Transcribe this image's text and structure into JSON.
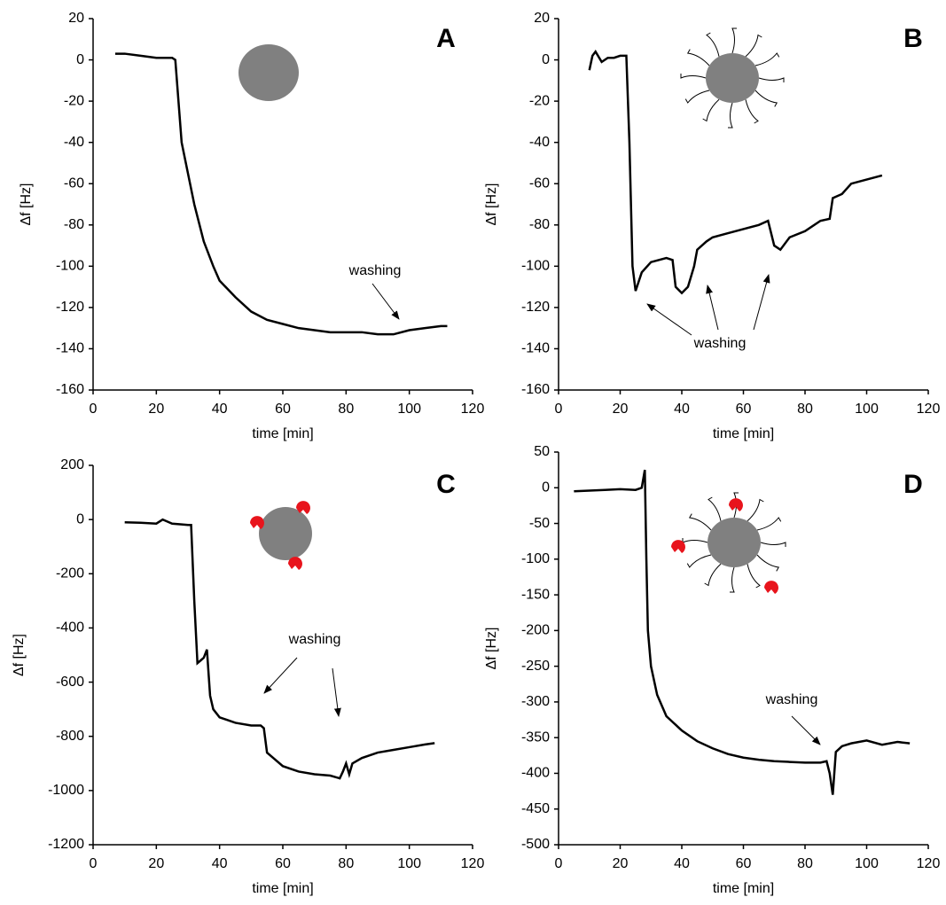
{
  "chart_data": [
    {
      "type": "line",
      "label": "A",
      "xlabel": "time [min]",
      "ylabel": "Δf [Hz]",
      "annotation": "washing",
      "xlim": [
        0,
        120
      ],
      "xticks": [
        0,
        20,
        40,
        60,
        80,
        100,
        120
      ],
      "ylim": [
        -160,
        20
      ],
      "yticks": [
        -160,
        -140,
        -120,
        -100,
        -80,
        -60,
        -40,
        -20,
        0,
        20
      ],
      "series": [
        {
          "color": "#000000",
          "x": [
            7,
            10,
            15,
            20,
            25,
            26,
            27,
            28,
            30,
            32,
            35,
            38,
            40,
            45,
            50,
            55,
            60,
            65,
            70,
            75,
            80,
            85,
            90,
            95,
            100,
            105,
            110,
            112
          ],
          "values": [
            3,
            3,
            2,
            1,
            1,
            0,
            -20,
            -40,
            -55,
            -70,
            -88,
            -100,
            -107,
            -115,
            -122,
            -126,
            -128,
            -130,
            -131,
            -132,
            -132,
            -132,
            -133,
            -133,
            -131,
            -130,
            -129,
            -129
          ]
        }
      ]
    },
    {
      "type": "line",
      "label": "B",
      "xlabel": "time [min]",
      "ylabel": "Δf [Hz]",
      "annotation": "washing",
      "xlim": [
        0,
        120
      ],
      "xticks": [
        0,
        20,
        40,
        60,
        80,
        100,
        120
      ],
      "ylim": [
        -160,
        20
      ],
      "yticks": [
        -160,
        -140,
        -120,
        -100,
        -80,
        -60,
        -40,
        -20,
        0,
        20
      ],
      "series": [
        {
          "color": "#000000",
          "x": [
            10,
            11,
            12,
            14,
            16,
            18,
            20,
            22,
            23,
            24,
            25,
            27,
            30,
            35,
            37,
            38,
            40,
            42,
            44,
            45,
            48,
            50,
            55,
            60,
            65,
            68,
            70,
            72,
            75,
            80,
            85,
            88,
            89,
            92,
            95,
            100,
            105
          ],
          "values": [
            -5,
            2,
            4,
            -1,
            1,
            1,
            2,
            2,
            -40,
            -100,
            -112,
            -103,
            -98,
            -96,
            -97,
            -110,
            -113,
            -110,
            -100,
            -92,
            -88,
            -86,
            -84,
            -82,
            -80,
            -78,
            -90,
            -92,
            -86,
            -83,
            -78,
            -77,
            -67,
            -65,
            -60,
            -58,
            -56
          ]
        }
      ]
    },
    {
      "type": "line",
      "label": "C",
      "xlabel": "time [min]",
      "ylabel": "Δf [Hz]",
      "annotation": "washing",
      "xlim": [
        0,
        120
      ],
      "xticks": [
        0,
        20,
        40,
        60,
        80,
        100,
        120
      ],
      "ylim": [
        -1200,
        200
      ],
      "yticks": [
        -1200,
        -1000,
        -800,
        -600,
        -400,
        -200,
        0,
        200
      ],
      "series": [
        {
          "color": "#000000",
          "x": [
            10,
            15,
            20,
            22,
            25,
            28,
            30,
            31,
            32,
            33,
            34,
            35,
            36,
            37,
            38,
            40,
            45,
            50,
            53,
            54,
            55,
            57,
            60,
            65,
            70,
            75,
            78,
            79,
            80,
            81,
            82,
            85,
            90,
            95,
            100,
            105,
            108
          ],
          "values": [
            -10,
            -12,
            -15,
            0,
            -15,
            -18,
            -20,
            -20,
            -300,
            -530,
            -520,
            -510,
            -480,
            -650,
            -700,
            -730,
            -750,
            -760,
            -760,
            -770,
            -860,
            -880,
            -910,
            -930,
            -940,
            -945,
            -955,
            -930,
            -900,
            -940,
            -900,
            -880,
            -860,
            -850,
            -840,
            -830,
            -825
          ]
        }
      ]
    },
    {
      "type": "line",
      "label": "D",
      "xlabel": "time [min]",
      "ylabel": "Δf [Hz]",
      "annotation": "washing",
      "xlim": [
        0,
        120
      ],
      "xticks": [
        0,
        20,
        40,
        60,
        80,
        100,
        120
      ],
      "ylim": [
        -500,
        50
      ],
      "yticks": [
        -500,
        -450,
        -400,
        -350,
        -300,
        -250,
        -200,
        -150,
        -100,
        -50,
        0,
        50
      ],
      "series": [
        {
          "color": "#000000",
          "x": [
            5,
            10,
            15,
            20,
            25,
            27,
            28,
            28.5,
            29,
            30,
            32,
            35,
            40,
            45,
            50,
            55,
            60,
            65,
            70,
            75,
            80,
            85,
            87,
            88,
            89,
            90,
            92,
            95,
            100,
            105,
            110,
            114
          ],
          "values": [
            -5,
            -4,
            -3,
            -2,
            -3,
            0,
            25,
            -100,
            -200,
            -250,
            -290,
            -320,
            -340,
            -355,
            -365,
            -373,
            -378,
            -381,
            -383,
            -384,
            -385,
            -385,
            -383,
            -400,
            -430,
            -370,
            -362,
            -358,
            -354,
            -360,
            -356,
            -358
          ]
        }
      ]
    }
  ]
}
